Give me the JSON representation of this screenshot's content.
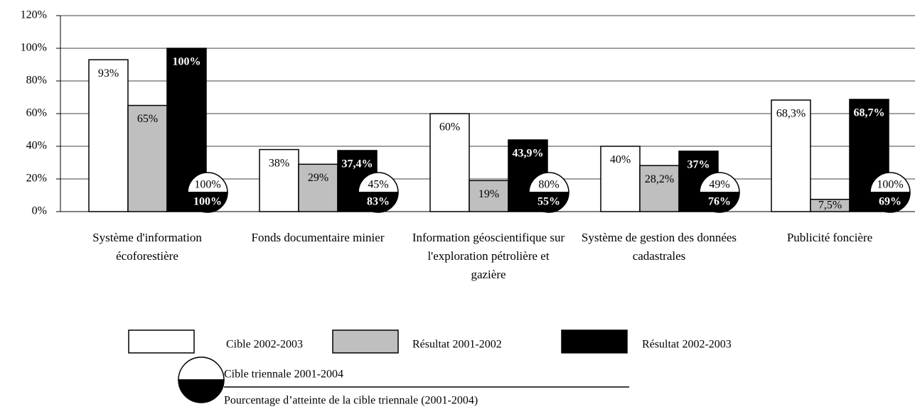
{
  "chart_data": {
    "type": "bar",
    "categories": [
      "Système d'information écoforestière",
      "Fonds documentaire minier",
      "Information géoscientifique sur l'exploration pétrolière et gazière",
      "Système de gestion des données cadastrales",
      "Publicité foncière"
    ],
    "series": [
      {
        "name": "Cible 2002-2003",
        "color": "#ffffff",
        "values": [
          93,
          38,
          60,
          40,
          68.3
        ],
        "value_labels": [
          "93%",
          "38%",
          "60%",
          "40%",
          "68,3%"
        ]
      },
      {
        "name": "Résultat 2001-2002",
        "color": "#bfbfbf",
        "values": [
          65,
          29,
          19,
          28.2,
          7.5
        ],
        "value_labels": [
          "65%",
          "29%",
          "19%",
          "28,2%",
          "7,5%"
        ]
      },
      {
        "name": "Résultat 2002-2003",
        "color": "#000000",
        "values": [
          100,
          37.4,
          43.9,
          37,
          68.7
        ],
        "value_labels": [
          "100%",
          "37,4%",
          "43,9%",
          "37%",
          "68,7%"
        ]
      }
    ],
    "circle_top": {
      "name": "Cible triennale 2001-2004",
      "values": [
        100,
        45,
        80,
        49,
        100
      ],
      "value_labels": [
        "100%",
        "45%",
        "80%",
        "49%",
        "100%"
      ]
    },
    "circle_bottom": {
      "name": "Pourcentage d’atteinte de la cible triennale (2001-2004)",
      "values": [
        100,
        83,
        55,
        76,
        69
      ],
      "value_labels": [
        "100%",
        "83%",
        "55%",
        "76%",
        "69%"
      ]
    },
    "ylim": [
      0,
      120
    ],
    "yticks": [
      {
        "value": 0,
        "label": "0%"
      },
      {
        "value": 20,
        "label": "20%"
      },
      {
        "value": 40,
        "label": "40%"
      },
      {
        "value": 60,
        "label": "60%"
      },
      {
        "value": 80,
        "label": "80%"
      },
      {
        "value": 100,
        "label": "100%"
      },
      {
        "value": 120,
        "label": "120%"
      }
    ],
    "grid": true
  }
}
